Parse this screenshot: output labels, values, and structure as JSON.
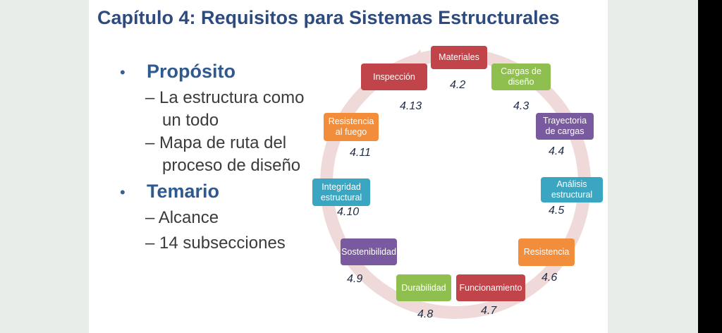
{
  "slide": {
    "title": "Capítulo 4: Requisitos para Sistemas Estructurales",
    "bullets": [
      {
        "marker": "•",
        "heading": "Propósito",
        "items": [
          "– La estructura como",
          "un todo",
          "– Mapa de ruta del",
          "proceso de diseño"
        ]
      },
      {
        "marker": "•",
        "heading": "Temario",
        "items": [
          "– Alcance",
          "– 14 subsecciones"
        ]
      }
    ]
  },
  "cycle": {
    "ring_color": "#f0d9d9",
    "nodes": [
      {
        "label": "Materiales",
        "section": "4.2",
        "color": "#c0444a"
      },
      {
        "label": "Cargas de diseño",
        "section": "4.3",
        "color": "#8fbf4e"
      },
      {
        "label": "Trayectoria de cargas",
        "section": "4.4",
        "color": "#7a5a9e"
      },
      {
        "label": "Análisis estructural",
        "section": "4.5",
        "color": "#3aa6c2"
      },
      {
        "label": "Resistencia",
        "section": "4.6",
        "color": "#f28d3c"
      },
      {
        "label": "Funcionamiento",
        "section": "4.7",
        "color": "#c0444a"
      },
      {
        "label": "Durabilidad",
        "section": "4.8",
        "color": "#8fbf4e"
      },
      {
        "label": "Sostenibilidad",
        "section": "4.9",
        "color": "#7a5a9e"
      },
      {
        "label": "Integridad estructural",
        "section": "4.10",
        "color": "#3aa6c2"
      },
      {
        "label": "Resistencia al fuego",
        "section": "4.11",
        "color": "#f28d3c"
      },
      {
        "label": "Inspección",
        "section": "4.13",
        "color": "#c0444a"
      }
    ]
  }
}
